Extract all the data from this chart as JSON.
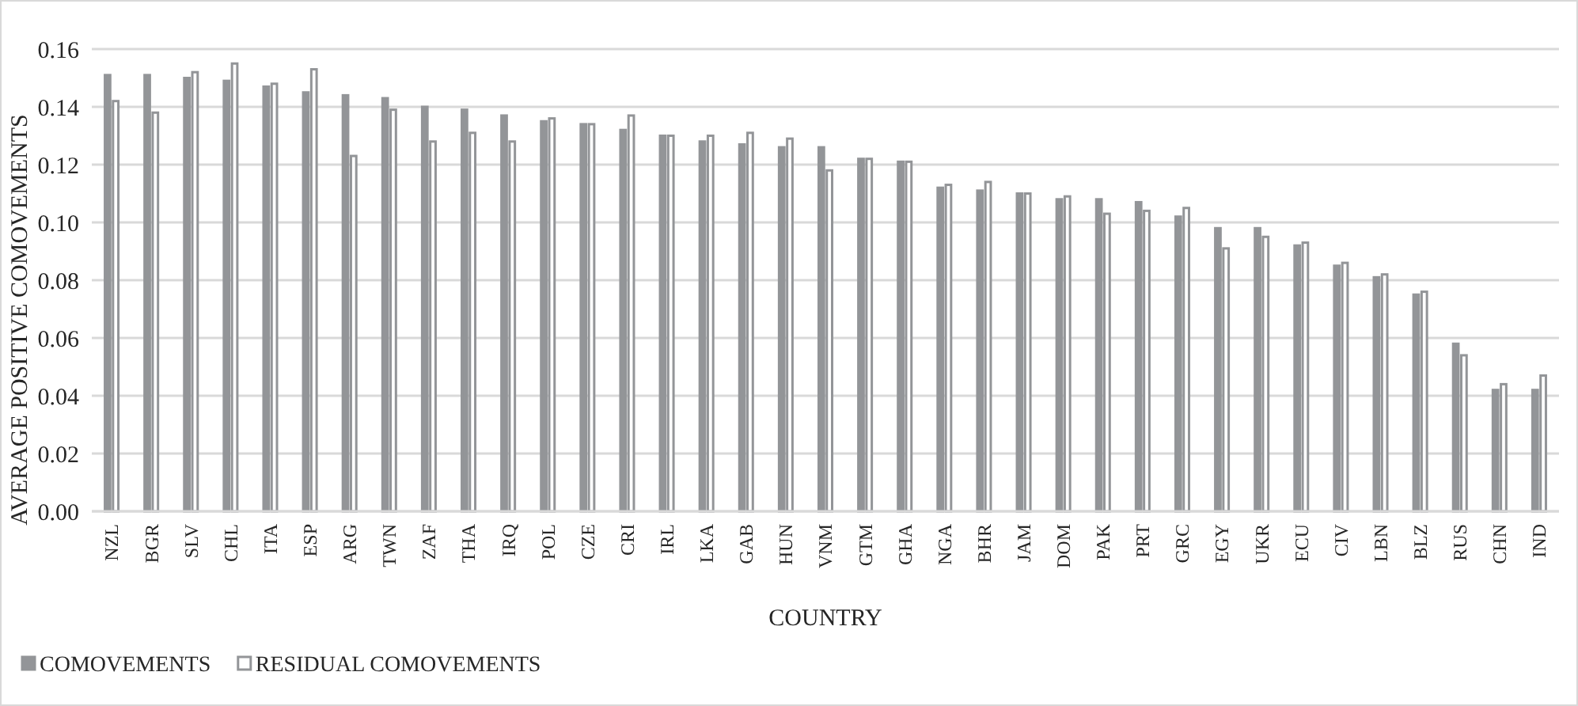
{
  "chart_data": {
    "type": "bar",
    "xlabel": "COUNTRY",
    "ylabel": "AVERAGE POSITIVE COMOVEMENTS",
    "categories": [
      "NZL",
      "BGR",
      "SLV",
      "CHL",
      "ITA",
      "ESP",
      "ARG",
      "TWN",
      "ZAF",
      "THA",
      "IRQ",
      "POL",
      "CZE",
      "CRI",
      "IRL",
      "LKA",
      "GAB",
      "HUN",
      "VNM",
      "GTM",
      "GHA",
      "NGA",
      "BHR",
      "JAM",
      "DOM",
      "PAK",
      "PRT",
      "GRC",
      "EGY",
      "UKR",
      "ECU",
      "CIV",
      "LBN",
      "BLZ",
      "RUS",
      "CHN",
      "IND"
    ],
    "series": [
      {
        "name": "COMOVEMENTS",
        "color": "#939598",
        "values": [
          0.151,
          0.151,
          0.15,
          0.149,
          0.147,
          0.145,
          0.144,
          0.143,
          0.14,
          0.139,
          0.137,
          0.135,
          0.134,
          0.132,
          0.13,
          0.128,
          0.127,
          0.126,
          0.126,
          0.122,
          0.121,
          0.112,
          0.111,
          0.11,
          0.108,
          0.108,
          0.107,
          0.102,
          0.098,
          0.098,
          0.092,
          0.085,
          0.081,
          0.075,
          0.058,
          0.042,
          0.042
        ]
      },
      {
        "name": "RESIDUAL COMOVEMENTS",
        "color": "#ffffff",
        "values": [
          0.142,
          0.138,
          0.152,
          0.155,
          0.148,
          0.153,
          0.123,
          0.139,
          0.128,
          0.131,
          0.128,
          0.136,
          0.134,
          0.137,
          0.13,
          0.13,
          0.131,
          0.129,
          0.118,
          0.122,
          0.121,
          0.113,
          0.114,
          0.11,
          0.109,
          0.103,
          0.104,
          0.105,
          0.091,
          0.095,
          0.093,
          0.086,
          0.082,
          0.076,
          0.054,
          0.044,
          0.047
        ]
      }
    ],
    "ylim": [
      0,
      0.16
    ],
    "yticks": [
      {
        "value": 0,
        "label": "0.00"
      },
      {
        "value": 0.02,
        "label": "0.02"
      },
      {
        "value": 0.04,
        "label": "0.04"
      },
      {
        "value": 0.06,
        "label": "0.06"
      },
      {
        "value": 0.08,
        "label": "0.08"
      },
      {
        "value": 0.1,
        "label": "0.10"
      },
      {
        "value": 0.12,
        "label": "0.12"
      },
      {
        "value": 0.14,
        "label": "0.14"
      },
      {
        "value": 0.16,
        "label": "0.16"
      }
    ],
    "grid": "y",
    "legend": "bottom left"
  }
}
